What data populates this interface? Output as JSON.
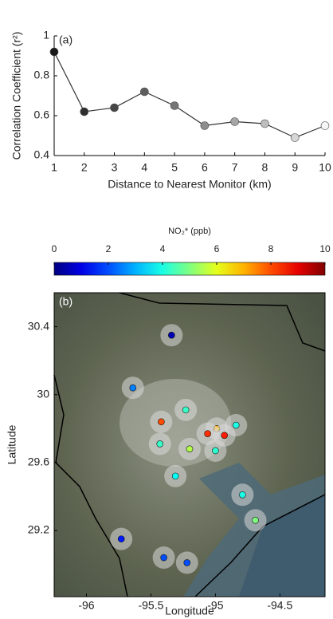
{
  "chart_data": [
    {
      "type": "line",
      "label": "(a)",
      "x_label": "Distance to Nearest Monitor (km)",
      "y_label": "Correlation Coefficient (r²)",
      "x": [
        1,
        2,
        3,
        4,
        5,
        6,
        7,
        8,
        9,
        10
      ],
      "values": [
        0.92,
        0.62,
        0.64,
        0.72,
        0.65,
        0.55,
        0.57,
        0.56,
        0.49,
        0.55
      ],
      "marker_colors": [
        "#1a1a1a",
        "#2e2e2e",
        "#474747",
        "#5e5e5e",
        "#767676",
        "#8e8e8e",
        "#a6a6a6",
        "#bebebe",
        "#d6d6d6",
        "#f7f7f7"
      ],
      "color": "#333333",
      "xlim": [
        1,
        10
      ],
      "xticks": [
        1,
        2,
        3,
        4,
        5,
        6,
        7,
        8,
        9,
        10
      ],
      "ylim": [
        0.4,
        1
      ],
      "yticks": [
        0.4,
        0.6,
        0.8,
        1
      ]
    },
    {
      "type": "scatter",
      "label": "(b)",
      "x_label": "Longitude",
      "y_label": "Latitude",
      "colorbar": {
        "label": "NO₂* (ppb)",
        "lim": [
          0,
          10
        ],
        "ticks": [
          0,
          2,
          4,
          6,
          8,
          10
        ]
      },
      "x": [
        -95.34,
        -95.64,
        -95.23,
        -95.42,
        -94.99,
        -95.06,
        -94.93,
        -94.84,
        -95.43,
        -95.2,
        -95.0,
        -95.31,
        -94.79,
        -94.69,
        -95.73,
        -95.4,
        -95.22
      ],
      "y": [
        30.35,
        30.04,
        29.91,
        29.84,
        29.8,
        29.77,
        29.76,
        29.82,
        29.71,
        29.68,
        29.67,
        29.52,
        29.41,
        29.26,
        29.15,
        29.04,
        29.01
      ],
      "values": [
        0.5,
        2.5,
        4.3,
        8,
        7,
        8.3,
        8.5,
        4,
        4.3,
        5.5,
        4.2,
        3.8,
        4,
        5,
        1.5,
        2,
        2
      ],
      "xlim": [
        -96.25,
        -94.15
      ],
      "xticks": [
        -96,
        -95.5,
        -95,
        -94.5
      ],
      "ylim": [
        28.81,
        30.6
      ],
      "yticks": [
        29.2,
        29.6,
        30,
        30.4
      ]
    }
  ]
}
